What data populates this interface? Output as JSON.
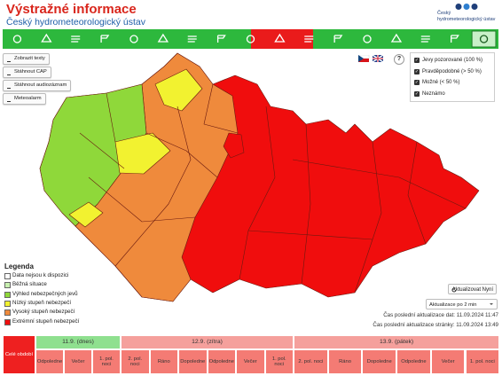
{
  "header": {
    "title": "Výstražné informace",
    "subtitle": "Český hydrometeorologický ústav",
    "logo_text": "Český hydrometeorologický ústav"
  },
  "buttons": [
    "Zobrazit texty",
    "Stáhnout CAP",
    "Stáhnout audiozáznam",
    "Meteoalarm"
  ],
  "help": "?",
  "filters": [
    "Jevy pozorované (100 %)",
    "Pravděpodobné (> 50 %)",
    "Možné (< 50 %)",
    "Neznámo"
  ],
  "legend": {
    "title": "Legenda",
    "items": [
      "Data nejsou k dispozici",
      "Běžná situace",
      "Výhled nebezpečných jevů",
      "Nízký stupeň nebezpečí",
      "Vysoký stupeň nebezpečí",
      "Extrémní stupeň nebezpečí"
    ]
  },
  "update_button": "Aktualizovat Nyní",
  "update_select": "Aktualizace po 2 min",
  "data_updated": "Čas poslední aktualizace dat: 11.09.2024 11:47",
  "page_updated": "Čas poslední aktualizace stránky: 11.09.2024 13:49",
  "timeline": {
    "whole_period": "Celé období",
    "days": [
      {
        "label": "11.9. (dnes)",
        "periods": [
          "Odpoledne",
          "Večer",
          "1. pol. noci"
        ]
      },
      {
        "label": "12.9. (zítra)",
        "periods": [
          "2. pol. noci",
          "Ráno",
          "Dopoledne",
          "Odpoledne",
          "Večer",
          "1. pol. noci"
        ]
      },
      {
        "label": "13.9. (pátek)",
        "periods": [
          "2. pol. noci",
          "Ráno",
          "Dopoledne",
          "Odpoledne",
          "Večer",
          "1. pol. noci"
        ]
      }
    ]
  }
}
